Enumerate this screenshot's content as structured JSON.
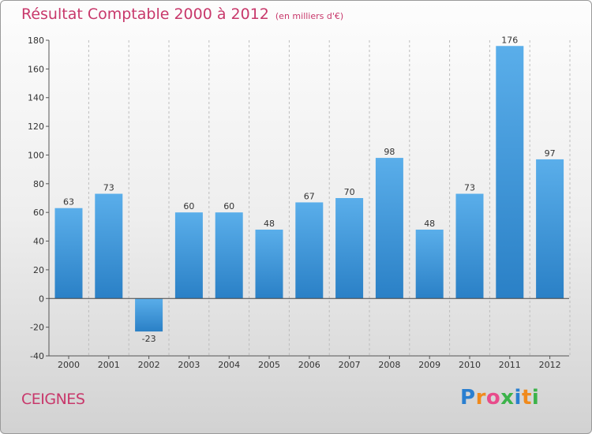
{
  "title": "Résultat Comptable 2000 à 2012",
  "subtitle": "(en milliers d'€)",
  "town": "CEIGNES",
  "logo": {
    "letters": [
      "P",
      "r",
      "o",
      "x",
      "i",
      "t",
      "i"
    ],
    "colors": [
      "#2a7fd0",
      "#f08a1c",
      "#e84c8b",
      "#3cb34a",
      "#2a7fd0",
      "#f08a1c",
      "#3cb34a"
    ]
  },
  "colors": {
    "title": "#c8386b",
    "bar_light": "#5aaeea",
    "bar_dark": "#2a80c6",
    "axis": "#555555",
    "grid": "#bdbdbd"
  },
  "chart_data": {
    "type": "bar",
    "title": "Résultat Comptable 2000 à 2012",
    "ylabel": "en milliers d'€",
    "xlabel": "",
    "categories": [
      "2000",
      "2001",
      "2002",
      "2003",
      "2004",
      "2005",
      "2006",
      "2007",
      "2008",
      "2009",
      "2010",
      "2011",
      "2012"
    ],
    "values": [
      63,
      73,
      -23,
      60,
      60,
      48,
      67,
      70,
      98,
      48,
      73,
      176,
      97
    ],
    "ylim": [
      -40,
      180
    ],
    "yticks": [
      -40,
      -20,
      0,
      20,
      40,
      60,
      80,
      100,
      120,
      140,
      160,
      180
    ],
    "grid": "vertical dashed"
  }
}
